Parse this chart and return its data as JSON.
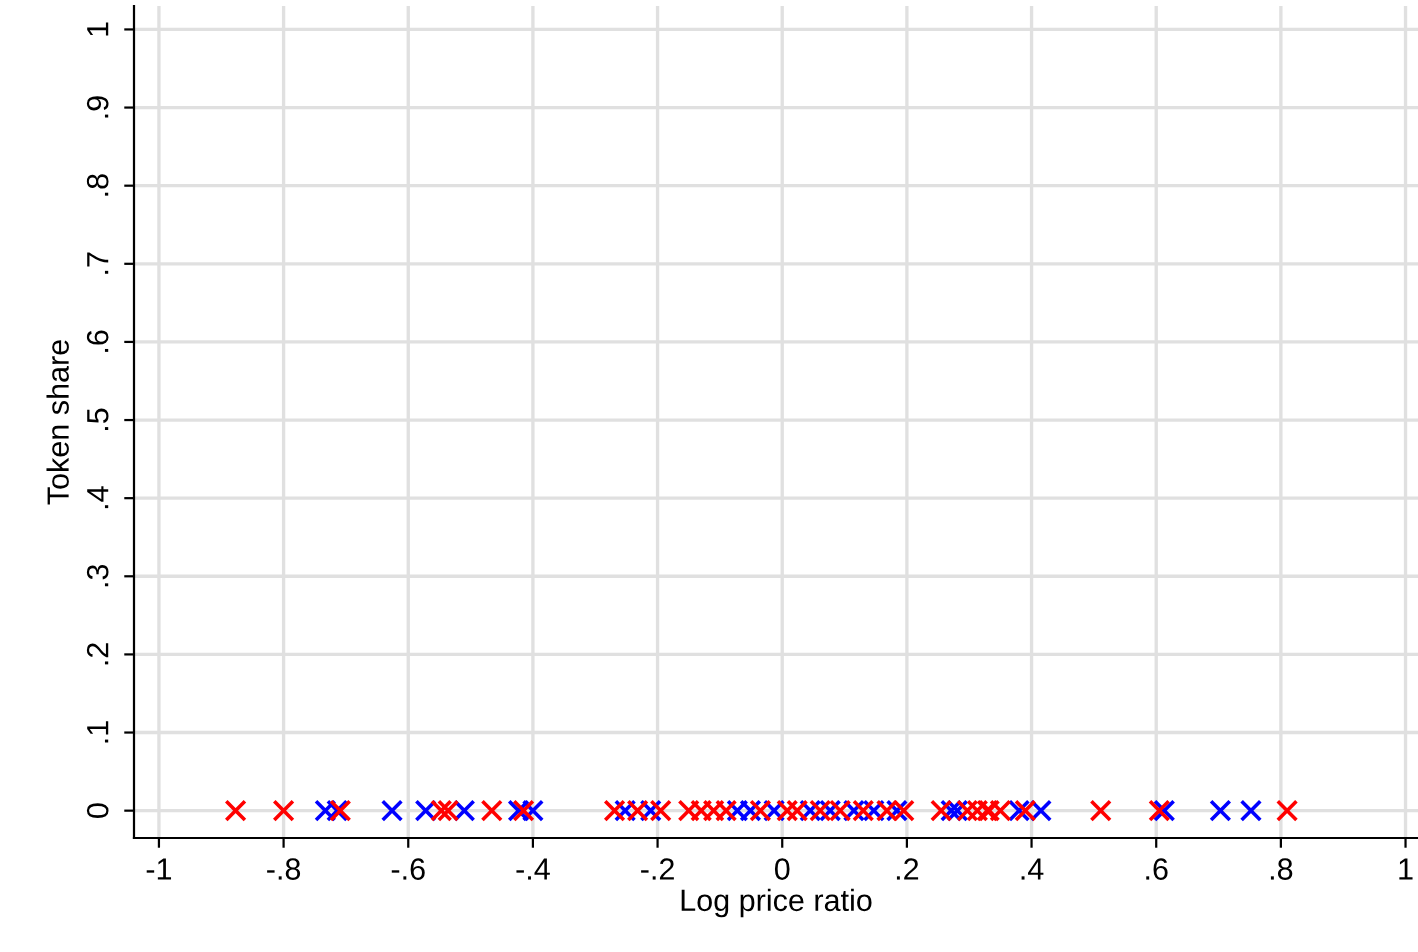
{
  "chart_data": {
    "type": "scatter",
    "xlabel": "Log price ratio",
    "ylabel": "Token share",
    "xlim": [
      -1.04,
      1.02
    ],
    "ylim": [
      -0.035,
      1.03
    ],
    "xticks": [
      {
        "value": -1,
        "label": "-1"
      },
      {
        "value": -0.8,
        "label": "-.8"
      },
      {
        "value": -0.6,
        "label": "-.6"
      },
      {
        "value": -0.4,
        "label": "-.4"
      },
      {
        "value": -0.2,
        "label": "-.2"
      },
      {
        "value": 0,
        "label": "0"
      },
      {
        "value": 0.2,
        "label": ".2"
      },
      {
        "value": 0.4,
        "label": ".4"
      },
      {
        "value": 0.6,
        "label": ".6"
      },
      {
        "value": 0.8,
        "label": ".8"
      },
      {
        "value": 1,
        "label": "1"
      }
    ],
    "yticks": [
      {
        "value": 0,
        "label": "0"
      },
      {
        "value": 0.1,
        "label": ".1"
      },
      {
        "value": 0.2,
        "label": ".2"
      },
      {
        "value": 0.3,
        "label": ".3"
      },
      {
        "value": 0.4,
        "label": ".4"
      },
      {
        "value": 0.5,
        "label": ".5"
      },
      {
        "value": 0.6,
        "label": ".6"
      },
      {
        "value": 0.7,
        "label": ".7"
      },
      {
        "value": 0.8,
        "label": ".8"
      },
      {
        "value": 0.9,
        "label": ".9"
      },
      {
        "value": 1,
        "label": "1"
      }
    ],
    "grid": true,
    "marker": "cross",
    "series": [
      {
        "color": "#0000ff",
        "x": [
          -0.733,
          -0.714,
          -0.626,
          -0.572,
          -0.51,
          -0.423,
          -0.4,
          -0.252,
          -0.211,
          -0.072,
          -0.051,
          -0.013,
          0.045,
          0.077,
          0.115,
          0.147,
          0.184,
          0.271,
          0.281,
          0.38,
          0.415,
          0.613,
          0.703,
          0.752
        ],
        "values": [
          0,
          0,
          0,
          0,
          0,
          0,
          0,
          0,
          0,
          0,
          0,
          0,
          0,
          0,
          0,
          0,
          0,
          0,
          0,
          0,
          0,
          0,
          0,
          0
        ]
      },
      {
        "color": "#ff0000",
        "x": [
          -0.877,
          -0.8,
          -0.709,
          -0.547,
          -0.536,
          -0.466,
          -0.415,
          -0.269,
          -0.232,
          -0.195,
          -0.15,
          -0.13,
          -0.11,
          -0.09,
          -0.035,
          0.008,
          0.024,
          0.061,
          0.093,
          0.13,
          0.168,
          0.195,
          0.255,
          0.297,
          0.313,
          0.329,
          0.332,
          0.35,
          0.39,
          0.511,
          0.605,
          0.81
        ],
        "values": [
          0,
          0,
          0,
          0,
          0,
          0,
          0,
          0,
          0,
          0,
          0,
          0,
          0,
          0,
          0,
          0,
          0,
          0,
          0,
          0,
          0,
          0,
          0,
          0,
          0,
          0,
          0,
          0,
          0,
          0,
          0,
          0
        ]
      }
    ]
  }
}
